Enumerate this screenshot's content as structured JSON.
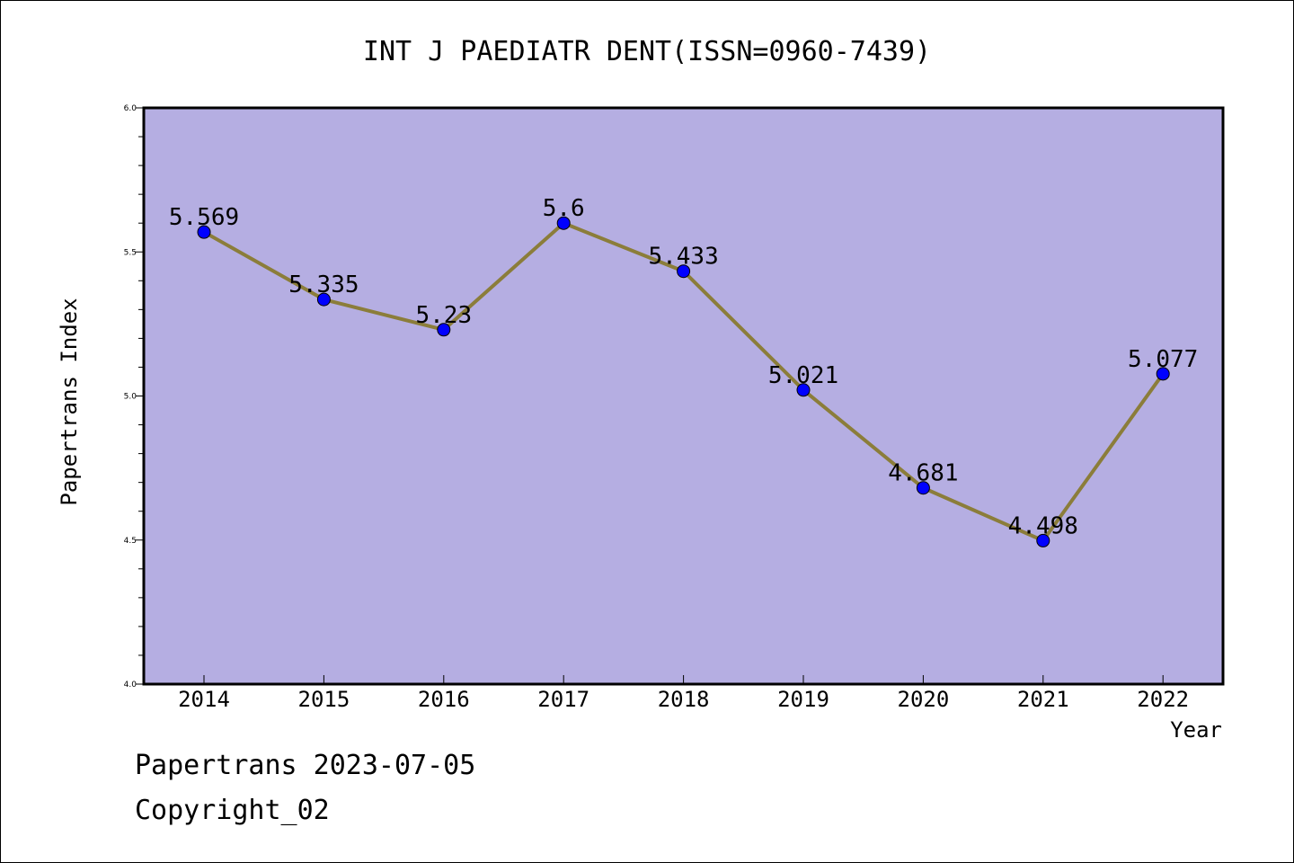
{
  "chart_data": {
    "type": "line",
    "title": "INT J PAEDIATR DENT(ISSN=0960-7439)",
    "xlabel": "Year",
    "ylabel": "Papertrans Index",
    "categories": [
      "2014",
      "2015",
      "2016",
      "2017",
      "2018",
      "2019",
      "2020",
      "2021",
      "2022"
    ],
    "series": [
      {
        "values": [
          5.569,
          5.335,
          5.23,
          5.6,
          5.433,
          5.021,
          4.681,
          4.498,
          5.077
        ],
        "data_labels": [
          "5.569",
          "5.335",
          "5.23",
          "5.6",
          "5.433",
          "5.021",
          "4.681",
          "4.498",
          "5.077"
        ]
      }
    ],
    "ylim": [
      4.0,
      6.0
    ],
    "yticks": [
      "4.0",
      "4.5",
      "5.0",
      "5.5",
      "6.0"
    ],
    "grid": false,
    "legend": "none",
    "colors": {
      "plot_background": "#b5aee2",
      "line": "#8b7d3a",
      "marker": "#0000ff",
      "axes": "#000000"
    }
  },
  "footer": {
    "line1": "Papertrans 2023-07-05",
    "line2": "Copyright_02"
  }
}
